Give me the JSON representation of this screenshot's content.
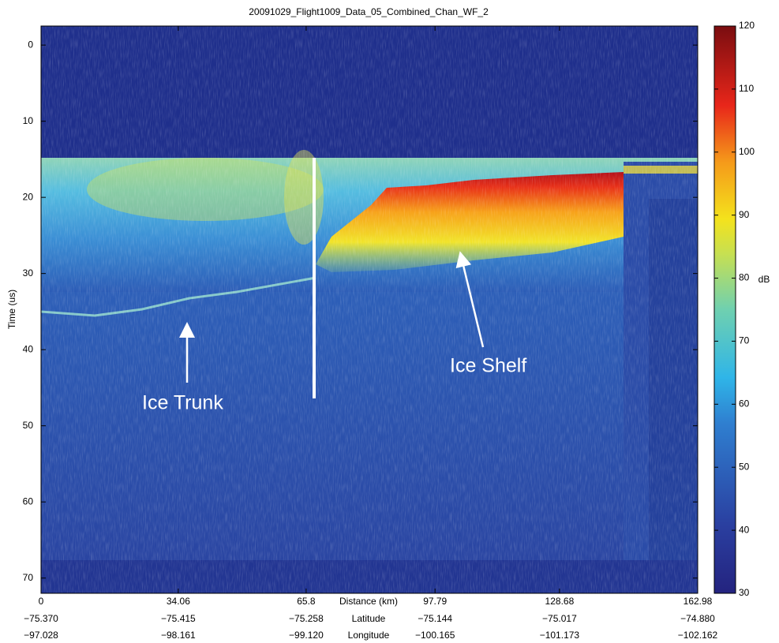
{
  "chart_data": {
    "type": "heatmap",
    "title": "20091029_Flight1009_Data_05_Combined_Chan_WF_2",
    "y_label": "Time (us)",
    "x_label": "Distance (km)",
    "ylim": [
      -2.5,
      72
    ],
    "yticks": [
      0,
      10,
      20,
      30,
      40,
      50,
      60,
      70
    ],
    "y_reversed": true,
    "xlim": [
      0,
      162.98
    ],
    "xticks": [
      0,
      34.06,
      65.8,
      97.79,
      128.68,
      162.98
    ],
    "latitude_label": "Latitude",
    "latitude_ticks": [
      "−75.370",
      "−75.415",
      "−75.258",
      "−75.144",
      "−75.017",
      "−74.880"
    ],
    "longitude_label": "Longitude",
    "longitude_ticks": [
      "−97.028",
      "−98.161",
      "−99.120",
      "−100.165",
      "−101.173",
      "−102.162"
    ],
    "colorbar": {
      "label": "dB",
      "lim": [
        30,
        120
      ],
      "ticks": [
        30,
        40,
        50,
        60,
        70,
        80,
        90,
        100,
        110,
        120
      ],
      "colormap": "jet"
    },
    "annotations": [
      "Ice Trunk",
      "Ice Shelf"
    ]
  }
}
